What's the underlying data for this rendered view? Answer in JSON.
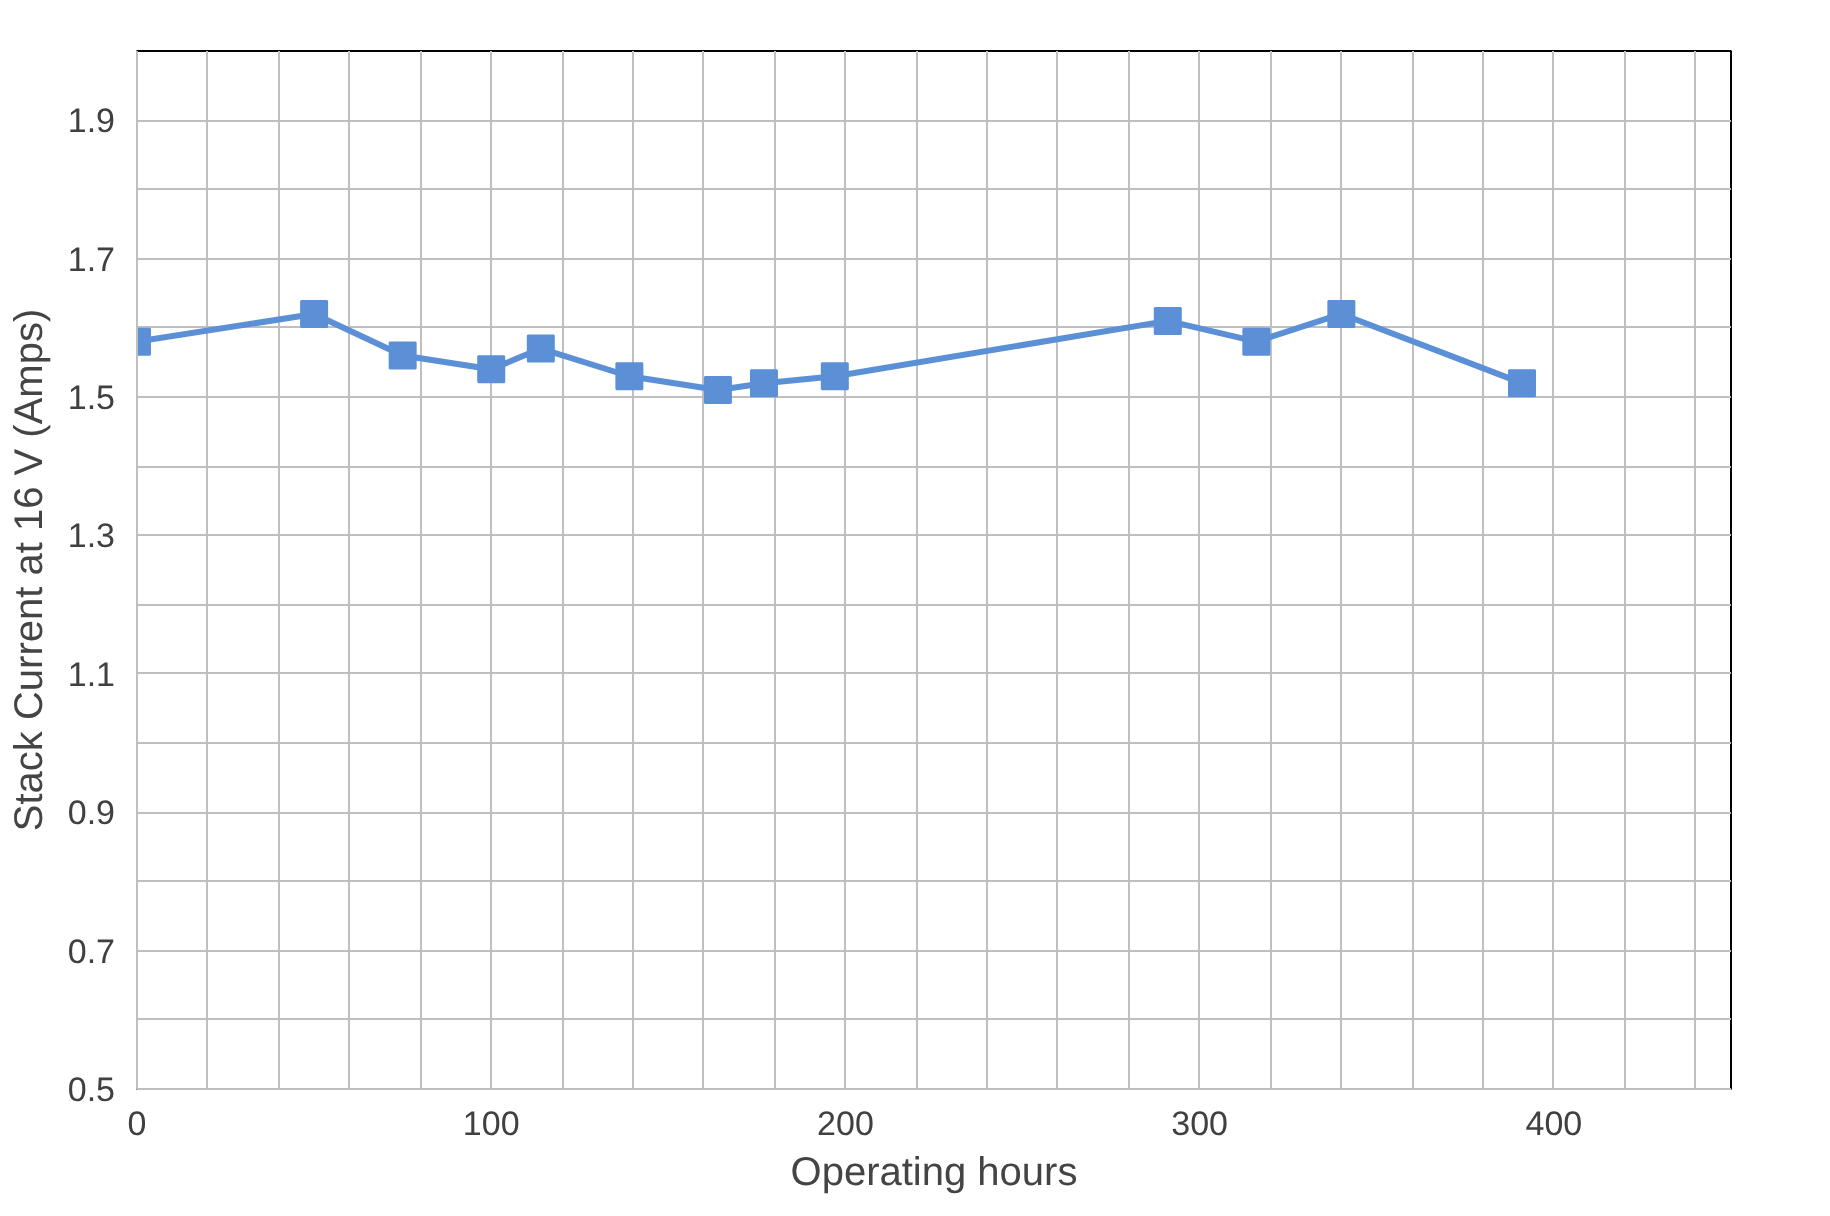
{
  "chart_data": {
    "type": "line",
    "xlabel": "Operating hours",
    "ylabel": "Stack Current at 16 V (Amps)",
    "x": [
      0,
      50,
      75,
      100,
      114,
      139,
      164,
      177,
      197,
      291,
      316,
      340,
      391
    ],
    "series": [
      {
        "color": "#5b8fd6",
        "values": [
          1.58,
          1.62,
          1.56,
          1.54,
          1.57,
          1.53,
          1.51,
          1.52,
          1.53,
          1.61,
          1.58,
          1.62,
          1.52
        ]
      }
    ],
    "xlim": [
      0,
      450
    ],
    "ylim": [
      0.5,
      2.0
    ],
    "xticks": [
      0,
      {
        "value": 20,
        "label": null
      },
      {
        "value": 40,
        "label": null
      },
      {
        "value": 60,
        "label": null
      },
      {
        "value": 80,
        "label": null
      },
      100,
      {
        "value": 120,
        "label": null
      },
      {
        "value": 140,
        "label": null
      },
      {
        "value": 160,
        "label": null
      },
      {
        "value": 180,
        "label": null
      },
      200,
      {
        "value": 220,
        "label": null
      },
      {
        "value": 240,
        "label": null
      },
      {
        "value": 260,
        "label": null
      },
      {
        "value": 280,
        "label": null
      },
      300,
      {
        "value": 320,
        "label": null
      },
      {
        "value": 340,
        "label": null
      },
      {
        "value": 360,
        "label": null
      },
      {
        "value": 380,
        "label": null
      },
      400,
      {
        "value": 420,
        "label": null
      },
      {
        "value": 440,
        "label": null
      }
    ],
    "yticks": [
      0.5,
      {
        "value": 0.6,
        "label": null
      },
      0.7,
      {
        "value": 0.8,
        "label": null
      },
      0.9,
      {
        "value": 1.0,
        "label": null
      },
      1.1,
      {
        "value": 1.2,
        "label": null
      },
      1.3,
      {
        "value": 1.4,
        "label": null
      },
      1.5,
      {
        "value": 1.6,
        "label": null
      },
      1.7,
      {
        "value": 1.8,
        "label": null
      },
      1.9
    ],
    "grid": true,
    "marker": "square",
    "line_style": "solid"
  }
}
